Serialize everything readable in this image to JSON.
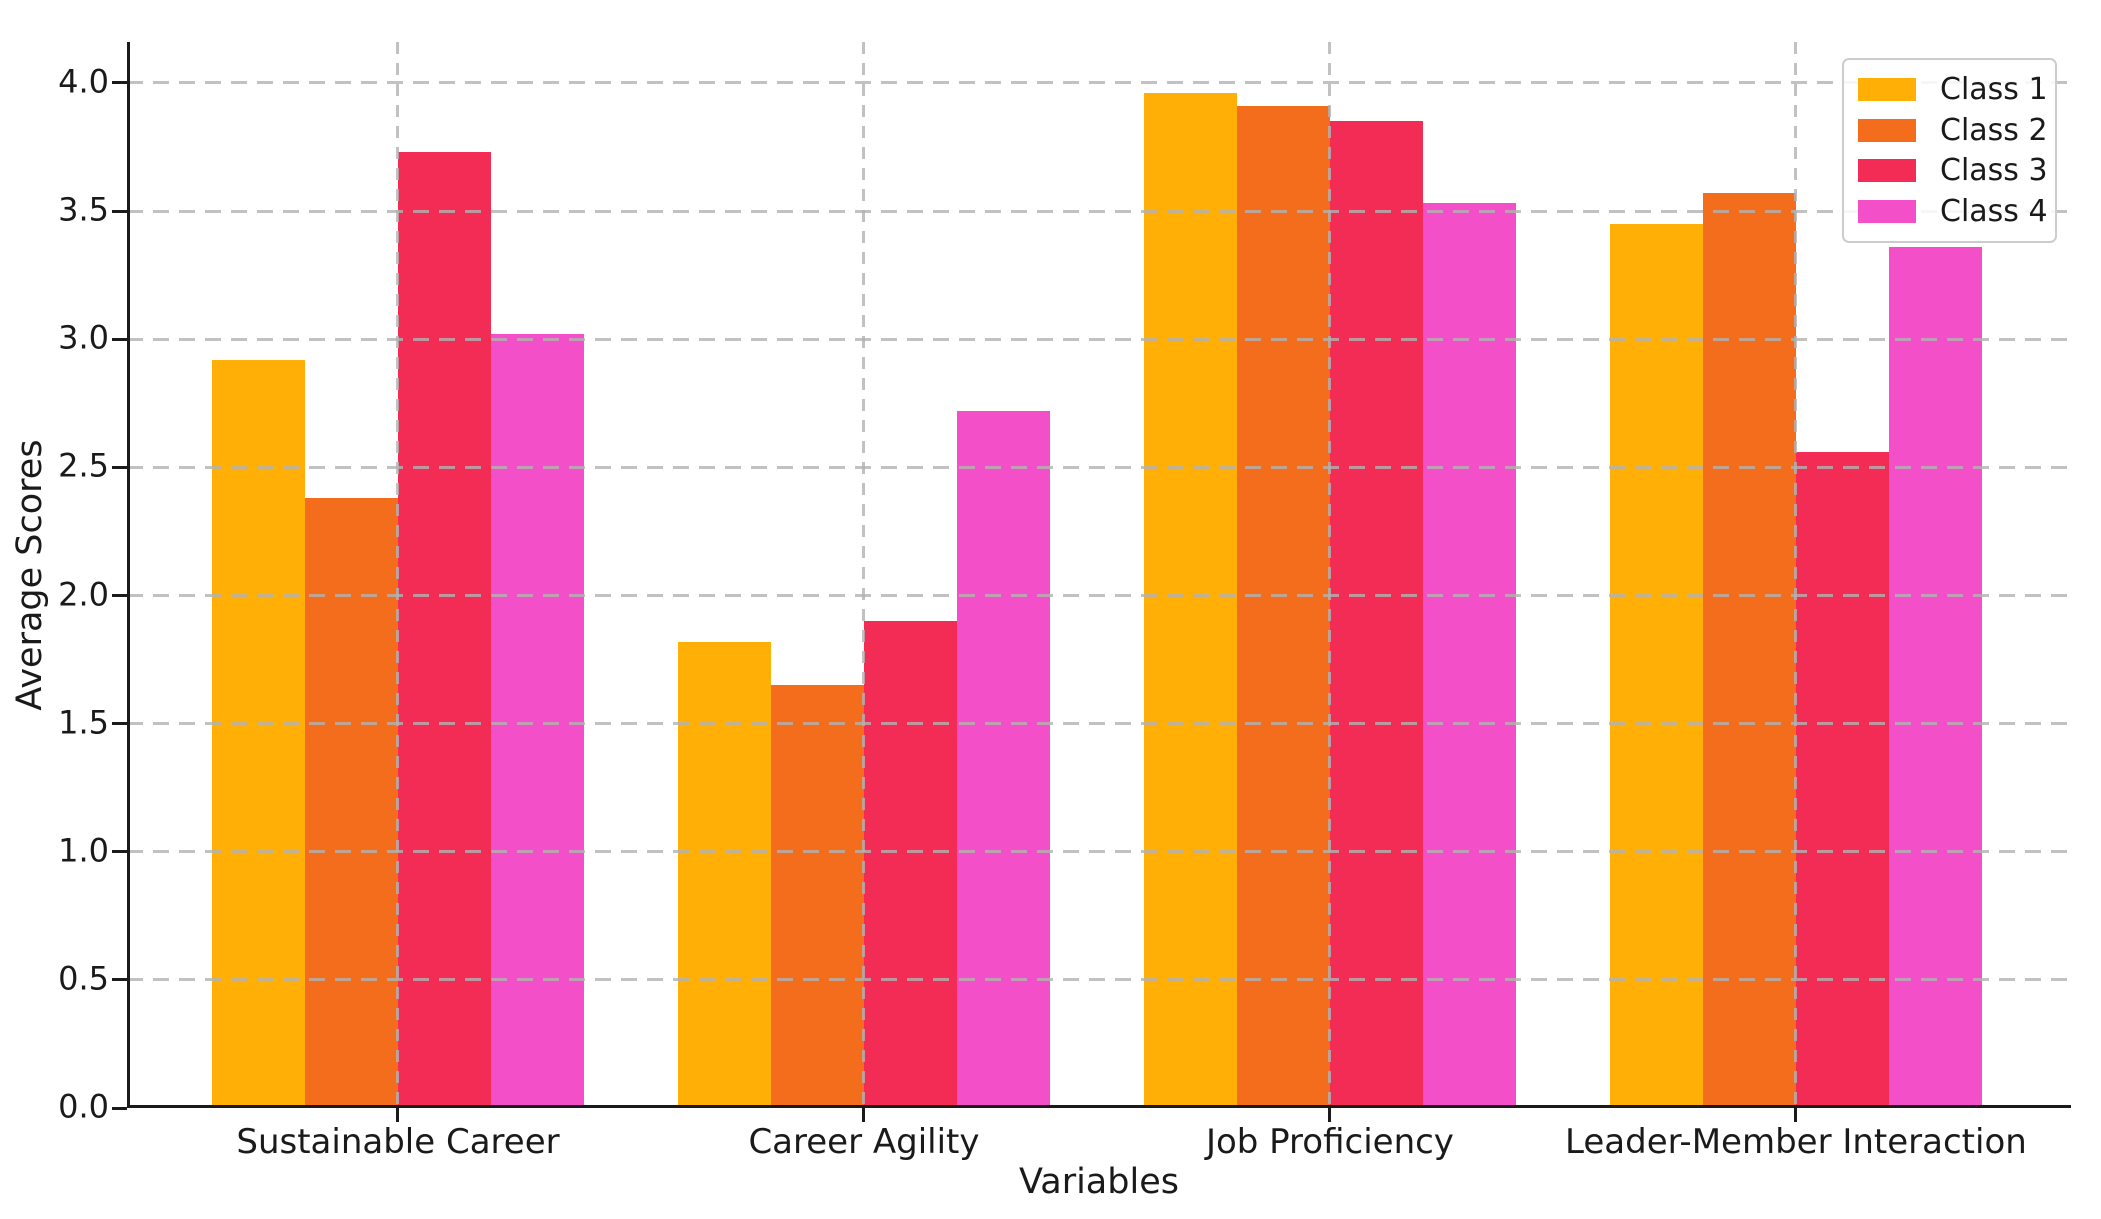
{
  "chart_data": {
    "type": "bar",
    "xlabel": "Variables",
    "ylabel": "Average Scores",
    "categories": [
      "Sustainable Career",
      "Career Agility",
      "Job Proficiency",
      "Leader-Member Interaction"
    ],
    "series": [
      {
        "name": "Class 1",
        "color": "#FFAF05",
        "values": [
          2.92,
          1.82,
          3.96,
          3.45
        ]
      },
      {
        "name": "Class 2",
        "color": "#F36D1D",
        "values": [
          2.38,
          1.65,
          3.91,
          3.57
        ]
      },
      {
        "name": "Class 3",
        "color": "#F22C55",
        "values": [
          3.73,
          1.9,
          3.85,
          2.56
        ]
      },
      {
        "name": "Class 4",
        "color": "#F24FC8",
        "values": [
          3.02,
          2.72,
          3.53,
          3.36
        ]
      }
    ],
    "ylim": [
      0,
      4.16
    ],
    "y_ticks": [
      0.0,
      0.5,
      1.0,
      1.5,
      2.0,
      2.5,
      3.0,
      3.5,
      4.0
    ],
    "y_tick_labels": [
      "0.0",
      "0.5",
      "1.0",
      "1.5",
      "2.0",
      "2.5",
      "3.0",
      "3.5",
      "4.0"
    ],
    "grid": {
      "style": "dashed",
      "horizontal_step": 0.5,
      "vertical_at_category_centers": true,
      "drawn_above_bars": true
    },
    "legend": {
      "position": "upper right",
      "labels": [
        "Class 1",
        "Class 2",
        "Class 3",
        "Class 4"
      ]
    },
    "style": {
      "background": "#ffffff",
      "text_color": "#1a1a1a",
      "grid_color": "#b2b2b2",
      "spine_color": "#1a1a1a"
    }
  }
}
